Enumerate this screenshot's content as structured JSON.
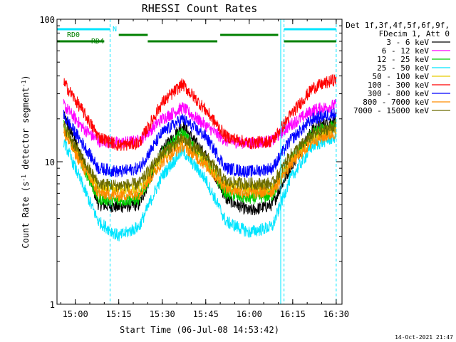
{
  "chart_data": {
    "type": "line",
    "title": "RHESSI Count Rates",
    "xlabel": "Start Time (06-Jul-08 14:53:42)",
    "ylabel_main": "Count Rate (s",
    "ylabel_sup1": "-1",
    "ylabel_mid": " detector segment",
    "ylabel_sup2": "-1",
    "ylabel_end": ")",
    "yscale": "log",
    "ylim": [
      1,
      100
    ],
    "xlim": [
      "14:53:42",
      "16:32:00"
    ],
    "xticks": [
      "15:00",
      "15:15",
      "15:30",
      "15:45",
      "16:00",
      "16:15",
      "16:30"
    ],
    "yticks": [
      "1",
      "10",
      "100"
    ],
    "timestamp": "14-Oct-2021 21:47",
    "legend": {
      "header1": "Det 1f,3f,4f,5f,6f,9f,",
      "header2": "FDecim 1, Att 0",
      "position": "right"
    },
    "band_labels": {
      "n": "N",
      "rd0": "RD0",
      "rd4": "RD4"
    },
    "night_lines_time": [
      "15:12",
      "16:12"
    ],
    "night_bars": [
      {
        "start": "14:53:42",
        "end": "15:12"
      },
      {
        "start": "16:12",
        "end": "16:30"
      }
    ],
    "rd0_bars": [
      {
        "start": "15:15",
        "end": "15:25"
      },
      {
        "start": "15:50",
        "end": "16:10"
      }
    ],
    "rd4_bars": [
      {
        "start": "14:53:42",
        "end": "15:10"
      },
      {
        "start": "15:25",
        "end": "15:49"
      },
      {
        "start": "16:12",
        "end": "16:30"
      }
    ],
    "series": [
      {
        "name": "3 - 6 keV",
        "color": "#000000",
        "points": [
          [
            "14:56",
            21
          ],
          [
            "15:03",
            10
          ],
          [
            "15:08",
            5
          ],
          [
            "15:15",
            4.8
          ],
          [
            "15:22",
            5
          ],
          [
            "15:30",
            12
          ],
          [
            "15:37",
            18
          ],
          [
            "15:45",
            11
          ],
          [
            "15:52",
            5.5
          ],
          [
            "16:00",
            4.5
          ],
          [
            "16:08",
            5
          ],
          [
            "16:14",
            9
          ],
          [
            "16:22",
            17
          ],
          [
            "16:30",
            20
          ]
        ]
      },
      {
        "name": "6 - 12 keV",
        "color": "#ff00ff",
        "points": [
          [
            "14:56",
            25
          ],
          [
            "15:03",
            17
          ],
          [
            "15:08",
            14
          ],
          [
            "15:15",
            13.5
          ],
          [
            "15:22",
            14
          ],
          [
            "15:30",
            20
          ],
          [
            "15:37",
            24
          ],
          [
            "15:45",
            18
          ],
          [
            "15:52",
            14
          ],
          [
            "16:00",
            13.5
          ],
          [
            "16:08",
            14
          ],
          [
            "16:14",
            18
          ],
          [
            "16:22",
            23
          ],
          [
            "16:30",
            25
          ]
        ]
      },
      {
        "name": "12 - 25 keV",
        "color": "#00cc00",
        "points": [
          [
            "14:56",
            18
          ],
          [
            "15:03",
            9
          ],
          [
            "15:08",
            5.5
          ],
          [
            "15:15",
            5.3
          ],
          [
            "15:22",
            5.5
          ],
          [
            "15:30",
            11.5
          ],
          [
            "15:37",
            16
          ],
          [
            "15:45",
            10
          ],
          [
            "15:52",
            6
          ],
          [
            "16:00",
            5.5
          ],
          [
            "16:08",
            5.8
          ],
          [
            "16:14",
            10
          ],
          [
            "16:22",
            16
          ],
          [
            "16:30",
            18
          ]
        ]
      },
      {
        "name": "25 - 50 keV",
        "color": "#00e5ff",
        "points": [
          [
            "14:56",
            14
          ],
          [
            "15:03",
            6.5
          ],
          [
            "15:08",
            3.8
          ],
          [
            "15:15",
            3
          ],
          [
            "15:22",
            3.5
          ],
          [
            "15:30",
            8
          ],
          [
            "15:37",
            12
          ],
          [
            "15:45",
            7.5
          ],
          [
            "15:52",
            3.8
          ],
          [
            "16:00",
            3.2
          ],
          [
            "16:08",
            3.5
          ],
          [
            "16:14",
            7.5
          ],
          [
            "16:22",
            13
          ],
          [
            "16:30",
            15
          ]
        ]
      },
      {
        "name": "50 - 100 keV",
        "color": "#e6cc00",
        "points": [
          [
            "14:56",
            17
          ],
          [
            "15:03",
            9.5
          ],
          [
            "15:08",
            6.5
          ],
          [
            "15:15",
            6.5
          ],
          [
            "15:22",
            6.5
          ],
          [
            "15:30",
            11
          ],
          [
            "15:37",
            14
          ],
          [
            "15:45",
            10
          ],
          [
            "15:52",
            6.8
          ],
          [
            "16:00",
            6.5
          ],
          [
            "16:08",
            6.5
          ],
          [
            "16:14",
            10
          ],
          [
            "16:22",
            15
          ],
          [
            "16:30",
            17
          ]
        ]
      },
      {
        "name": "100 - 300 keV",
        "color": "#ff0000",
        "points": [
          [
            "14:56",
            36
          ],
          [
            "15:03",
            22
          ],
          [
            "15:08",
            15
          ],
          [
            "15:15",
            13
          ],
          [
            "15:22",
            13.5
          ],
          [
            "15:30",
            26
          ],
          [
            "15:37",
            35
          ],
          [
            "15:45",
            23
          ],
          [
            "15:52",
            15
          ],
          [
            "16:00",
            13.5
          ],
          [
            "16:08",
            14
          ],
          [
            "16:14",
            21
          ],
          [
            "16:22",
            33
          ],
          [
            "16:30",
            38
          ]
        ]
      },
      {
        "name": "300 - 800 keV",
        "color": "#0000ff",
        "points": [
          [
            "14:56",
            21
          ],
          [
            "15:03",
            13
          ],
          [
            "15:08",
            9
          ],
          [
            "15:15",
            8.5
          ],
          [
            "15:22",
            9
          ],
          [
            "15:30",
            16
          ],
          [
            "15:37",
            20
          ],
          [
            "15:45",
            15
          ],
          [
            "15:52",
            9
          ],
          [
            "16:00",
            8.5
          ],
          [
            "16:08",
            9
          ],
          [
            "16:14",
            14
          ],
          [
            "16:22",
            20
          ],
          [
            "16:30",
            22
          ]
        ]
      },
      {
        "name": "800 - 7000 keV",
        "color": "#ff8c00",
        "points": [
          [
            "14:56",
            16
          ],
          [
            "15:03",
            9
          ],
          [
            "15:08",
            6
          ],
          [
            "15:15",
            5.8
          ],
          [
            "15:22",
            6
          ],
          [
            "15:30",
            10
          ],
          [
            "15:37",
            13
          ],
          [
            "15:45",
            9.5
          ],
          [
            "15:52",
            6.5
          ],
          [
            "16:00",
            6
          ],
          [
            "16:08",
            6.2
          ],
          [
            "16:14",
            9.5
          ],
          [
            "16:22",
            14
          ],
          [
            "16:30",
            16
          ]
        ]
      },
      {
        "name": "7000 - 15000 keV",
        "color": "#6b6b00",
        "points": [
          [
            "14:56",
            18
          ],
          [
            "15:03",
            10
          ],
          [
            "15:08",
            7
          ],
          [
            "15:15",
            6.8
          ],
          [
            "15:22",
            7
          ],
          [
            "15:30",
            11.5
          ],
          [
            "15:37",
            14.5
          ],
          [
            "15:45",
            11
          ],
          [
            "15:52",
            7.2
          ],
          [
            "16:00",
            7
          ],
          [
            "16:08",
            7
          ],
          [
            "16:14",
            11
          ],
          [
            "16:22",
            15.5
          ],
          [
            "16:30",
            18
          ]
        ]
      }
    ]
  }
}
